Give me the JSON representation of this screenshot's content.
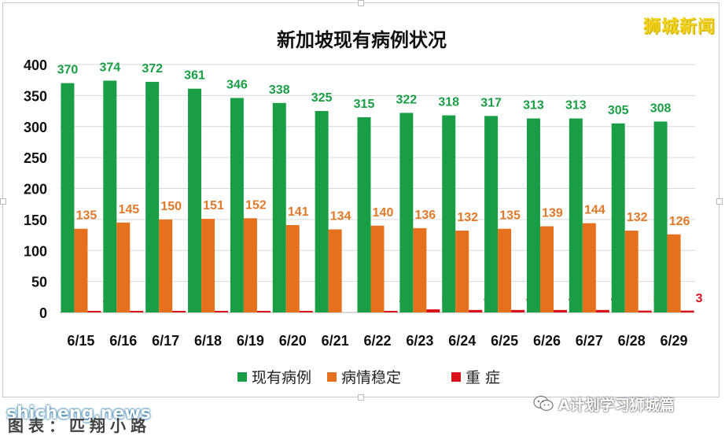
{
  "brand": "狮城新闻",
  "wechat_label": "A计划学习狮城篇",
  "watermark": "shicheng.news",
  "source_caption": "图表：匹翔小路",
  "chart_data": {
    "type": "bar",
    "title": "新加坡现有病例状况",
    "categories": [
      "6/15",
      "6/16",
      "6/17",
      "6/18",
      "6/19",
      "6/20",
      "6/21",
      "6/22",
      "6/23",
      "6/24",
      "6/25",
      "6/26",
      "6/27",
      "6/28",
      "6/29"
    ],
    "series": [
      {
        "name": "现有病例",
        "color": "#1a9e45",
        "label_color": "#1a9e45",
        "values": [
          370,
          374,
          372,
          361,
          346,
          338,
          325,
          315,
          322,
          318,
          317,
          313,
          313,
          305,
          308
        ]
      },
      {
        "name": "病情稳定",
        "color": "#e5711e",
        "label_color": "#e07a2a",
        "values": [
          135,
          145,
          150,
          151,
          152,
          141,
          134,
          140,
          136,
          132,
          135,
          139,
          144,
          132,
          126
        ]
      },
      {
        "name": "重 症",
        "color": "#d9111b",
        "label_color": "#d9111b",
        "values": [
          2,
          1,
          1,
          1,
          1,
          1,
          0,
          2,
          5,
          4,
          4,
          4,
          4,
          3,
          3
        ]
      }
    ],
    "hidden_labels": [
      [
        6,
        2
      ]
    ],
    "yticks": [
      0,
      50,
      100,
      150,
      200,
      250,
      300,
      350,
      400
    ],
    "ylim": [
      0,
      400
    ],
    "grid": true,
    "legend": "bottom"
  }
}
